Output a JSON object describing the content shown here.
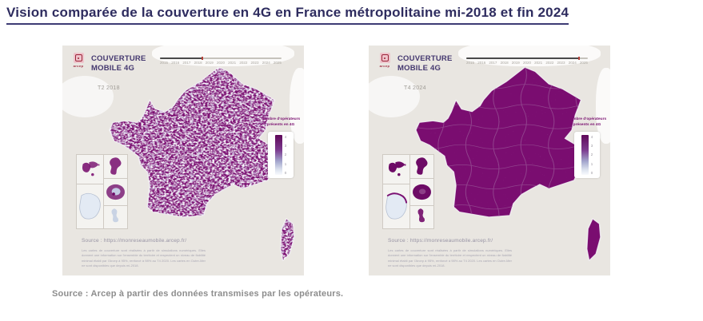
{
  "title": "Vision comparée de la couverture en 4G en France métropolitaine mi-2018 et fin 2024",
  "figure_source": "Source : Arcep à partir des données transmises par les opérateurs.",
  "timeline_years": [
    "2015",
    "2016",
    "2017",
    "2018",
    "2019",
    "2020",
    "2021",
    "2022",
    "2023",
    "2024",
    "2025"
  ],
  "legend": {
    "title": "Nombre d'opérateurs présents en 4G",
    "ticks": [
      "4",
      "3",
      "2",
      "1",
      "0"
    ],
    "scale_max": 4,
    "scale_min": 0
  },
  "panels": [
    {
      "logo_text": "arcep",
      "heading": "COUVERTURE MOBILE 4G",
      "period_label": "T2 2018",
      "timeline_progress_pct": 35,
      "map_source": "Source : https://monreseaumobile.arcep.fr/",
      "disclaimer": "Les cartes de couverture sont réalisées à partir de simulations numériques. Elles donnent une information sur l'ensemble du territoire et respectent un niveau de fiabilité minimal établi par l'Arcep à 95%, renforcé à 98% au T4 2020. Les cartes en Outre-Mer ne sont disponibles que depuis mi-2018."
    },
    {
      "logo_text": "arcep",
      "heading": "COUVERTURE MOBILE 4G",
      "period_label": "T4 2024",
      "timeline_progress_pct": 93,
      "map_source": "Source : https://monreseaumobile.arcep.fr/",
      "disclaimer": "Les cartes de couverture sont réalisées à partir de simulations numériques. Elles donnent une information sur l'ensemble du territoire et respectent un niveau de fiabilité minimal établi par l'Arcep à 95%, renforcé à 98% au T4 2020. Les cartes en Outre-Mer ne sont disponibles que depuis mi-2018."
    }
  ],
  "colors": {
    "coverage_full": "#7a0d70",
    "panel_background": "#e9e6e1",
    "title_accent": "#2e2c5f",
    "legend_top": "#5f0859",
    "legend_bottom": "#f8fafd"
  }
}
